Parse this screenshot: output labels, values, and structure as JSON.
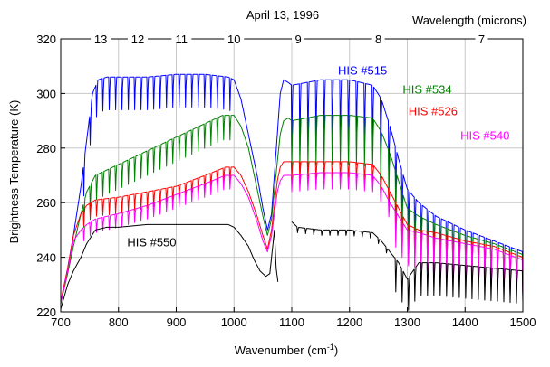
{
  "chart_data": {
    "type": "line",
    "title": "April 13, 1996",
    "xlabel_main": "Wavenumber (cm",
    "xlabel_sup": "-1",
    "xlabel_close": ")",
    "ylabel": "Brightness Temperature (K)",
    "top_axis_label": "Wavelength (microns)",
    "xlim": [
      700,
      1500
    ],
    "ylim": [
      220,
      320
    ],
    "x_ticks": [
      700,
      800,
      900,
      1000,
      1100,
      1200,
      1300,
      1400,
      1500
    ],
    "y_ticks": [
      220,
      240,
      260,
      280,
      300,
      320
    ],
    "top_ticks": [
      {
        "label": "13",
        "wavenumber": 769.2
      },
      {
        "label": "12",
        "wavenumber": 833.3
      },
      {
        "label": "11",
        "wavenumber": 909.1
      },
      {
        "label": "10",
        "wavenumber": 1000
      },
      {
        "label": "9",
        "wavenumber": 1111.1
      },
      {
        "label": "8",
        "wavenumber": 1250
      },
      {
        "label": "7",
        "wavenumber": 1428.6
      }
    ],
    "grid": true,
    "series": [
      {
        "name": "HIS #515",
        "color": "#0000ff",
        "label_pos": [
          1180,
          307
        ],
        "points": [
          [
            700,
            223
          ],
          [
            712,
            236
          ],
          [
            722,
            248
          ],
          [
            735,
            266
          ],
          [
            745,
            283
          ],
          [
            755,
            300
          ],
          [
            765,
            305
          ],
          [
            780,
            306
          ],
          [
            800,
            306
          ],
          [
            850,
            306
          ],
          [
            900,
            307
          ],
          [
            950,
            307
          ],
          [
            990,
            306
          ],
          [
            1000,
            305
          ],
          [
            1012,
            298
          ],
          [
            1025,
            285
          ],
          [
            1040,
            270
          ],
          [
            1050,
            258
          ],
          [
            1058,
            250
          ],
          [
            1065,
            256
          ],
          [
            1075,
            285
          ],
          [
            1080,
            300
          ],
          [
            1086,
            305
          ],
          [
            1094,
            304
          ],
          [
            1100,
            303
          ],
          [
            1150,
            305
          ],
          [
            1200,
            305
          ],
          [
            1240,
            303
          ],
          [
            1255,
            298
          ],
          [
            1270,
            288
          ],
          [
            1285,
            276
          ],
          [
            1300,
            265
          ],
          [
            1320,
            260
          ],
          [
            1350,
            255
          ],
          [
            1400,
            250
          ],
          [
            1450,
            246
          ],
          [
            1500,
            242
          ]
        ],
        "dips": [
          {
            "start": 740,
            "end": 1000,
            "step": 11,
            "depth": 12
          },
          {
            "start": 1100,
            "end": 1270,
            "step": 14,
            "depth": 24
          },
          {
            "start": 1280,
            "end": 1500,
            "step": 11,
            "depth": 18
          }
        ]
      },
      {
        "name": "HIS #534",
        "color": "#008000",
        "label_pos": [
          1292,
          300
        ],
        "points": [
          [
            700,
            223
          ],
          [
            712,
            234
          ],
          [
            722,
            244
          ],
          [
            735,
            256
          ],
          [
            745,
            264
          ],
          [
            760,
            270
          ],
          [
            800,
            274
          ],
          [
            850,
            279
          ],
          [
            900,
            284
          ],
          [
            950,
            289
          ],
          [
            980,
            292
          ],
          [
            1000,
            292
          ],
          [
            1012,
            288
          ],
          [
            1025,
            280
          ],
          [
            1040,
            265
          ],
          [
            1050,
            255
          ],
          [
            1058,
            248
          ],
          [
            1065,
            254
          ],
          [
            1075,
            275
          ],
          [
            1080,
            285
          ],
          [
            1086,
            290
          ],
          [
            1094,
            291
          ],
          [
            1100,
            290
          ],
          [
            1150,
            292
          ],
          [
            1200,
            292
          ],
          [
            1240,
            291
          ],
          [
            1255,
            286
          ],
          [
            1270,
            278
          ],
          [
            1285,
            268
          ],
          [
            1300,
            258
          ],
          [
            1320,
            255
          ],
          [
            1350,
            252
          ],
          [
            1400,
            248
          ],
          [
            1450,
            245
          ],
          [
            1500,
            241
          ]
        ],
        "dips": [
          {
            "start": 740,
            "end": 1000,
            "step": 11,
            "depth": 9
          },
          {
            "start": 1100,
            "end": 1270,
            "step": 14,
            "depth": 18
          },
          {
            "start": 1280,
            "end": 1500,
            "step": 11,
            "depth": 16
          }
        ]
      },
      {
        "name": "HIS #526",
        "color": "#ff0000",
        "label_pos": [
          1302,
          292
        ],
        "points": [
          [
            700,
            224
          ],
          [
            712,
            236
          ],
          [
            722,
            248
          ],
          [
            735,
            256
          ],
          [
            745,
            259
          ],
          [
            760,
            261
          ],
          [
            800,
            262
          ],
          [
            850,
            264
          ],
          [
            900,
            266
          ],
          [
            950,
            270
          ],
          [
            985,
            273
          ],
          [
            1000,
            273
          ],
          [
            1012,
            270
          ],
          [
            1025,
            264
          ],
          [
            1040,
            255
          ],
          [
            1050,
            248
          ],
          [
            1058,
            243
          ],
          [
            1065,
            250
          ],
          [
            1075,
            268
          ],
          [
            1080,
            273
          ],
          [
            1086,
            275
          ],
          [
            1094,
            275
          ],
          [
            1100,
            275
          ],
          [
            1150,
            275
          ],
          [
            1200,
            275
          ],
          [
            1240,
            274
          ],
          [
            1255,
            270
          ],
          [
            1270,
            264
          ],
          [
            1285,
            258
          ],
          [
            1300,
            252
          ],
          [
            1320,
            250
          ],
          [
            1350,
            249
          ],
          [
            1400,
            246
          ],
          [
            1450,
            244
          ],
          [
            1500,
            240
          ]
        ],
        "dips": [
          {
            "start": 740,
            "end": 1000,
            "step": 11,
            "depth": 6
          },
          {
            "start": 1100,
            "end": 1270,
            "step": 14,
            "depth": 7
          },
          {
            "start": 1280,
            "end": 1500,
            "step": 11,
            "depth": 14
          }
        ]
      },
      {
        "name": "HIS #540",
        "color": "#ff00ff",
        "label_pos": [
          1392,
          283
        ],
        "points": [
          [
            700,
            223
          ],
          [
            712,
            235
          ],
          [
            722,
            246
          ],
          [
            735,
            250
          ],
          [
            745,
            252
          ],
          [
            760,
            254
          ],
          [
            800,
            256
          ],
          [
            850,
            259
          ],
          [
            900,
            263
          ],
          [
            950,
            267
          ],
          [
            985,
            270
          ],
          [
            1000,
            270
          ],
          [
            1012,
            267
          ],
          [
            1025,
            262
          ],
          [
            1040,
            253
          ],
          [
            1050,
            246
          ],
          [
            1058,
            242
          ],
          [
            1065,
            248
          ],
          [
            1075,
            264
          ],
          [
            1080,
            268
          ],
          [
            1086,
            270
          ],
          [
            1094,
            270
          ],
          [
            1100,
            270
          ],
          [
            1150,
            271
          ],
          [
            1200,
            271
          ],
          [
            1240,
            270
          ],
          [
            1255,
            266
          ],
          [
            1270,
            260
          ],
          [
            1285,
            255
          ],
          [
            1300,
            250
          ],
          [
            1320,
            249
          ],
          [
            1350,
            247
          ],
          [
            1400,
            245
          ],
          [
            1450,
            243
          ],
          [
            1500,
            239
          ]
        ],
        "dips": [
          {
            "start": 740,
            "end": 1000,
            "step": 11,
            "depth": 5
          },
          {
            "start": 1100,
            "end": 1270,
            "step": 14,
            "depth": 6
          },
          {
            "start": 1280,
            "end": 1500,
            "step": 11,
            "depth": 13
          }
        ]
      },
      {
        "name": "HIS #550",
        "color": "#000000",
        "label_pos": [
          815,
          244
        ],
        "points": [
          [
            700,
            221
          ],
          [
            712,
            230
          ],
          [
            722,
            235
          ],
          [
            735,
            240
          ],
          [
            745,
            245
          ],
          [
            760,
            250
          ],
          [
            780,
            251
          ],
          [
            800,
            251
          ],
          [
            850,
            252
          ],
          [
            900,
            252
          ],
          [
            950,
            252
          ],
          [
            990,
            252
          ],
          [
            1000,
            251
          ],
          [
            1012,
            248
          ],
          [
            1025,
            244
          ],
          [
            1035,
            239
          ],
          [
            1045,
            235
          ],
          [
            1055,
            233
          ],
          [
            1062,
            234
          ],
          [
            1068,
            246
          ],
          [
            1070,
            250
          ],
          [
            1073,
            236
          ],
          [
            1076,
            231
          ],
          [
            1100,
            253
          ],
          [
            1110,
            251
          ],
          [
            1150,
            250
          ],
          [
            1200,
            250
          ],
          [
            1240,
            249
          ],
          [
            1255,
            246
          ],
          [
            1270,
            242
          ],
          [
            1285,
            238
          ],
          [
            1300,
            232
          ],
          [
            1320,
            238
          ],
          [
            1350,
            238
          ],
          [
            1400,
            237
          ],
          [
            1450,
            236
          ],
          [
            1500,
            235
          ]
        ],
        "gaps": [
          [
            1076,
            1100
          ]
        ],
        "dips": [
          {
            "start": 1110,
            "end": 1270,
            "step": 14,
            "depth": 2
          },
          {
            "start": 1280,
            "end": 1500,
            "step": 11,
            "depth": 12
          }
        ]
      }
    ]
  }
}
